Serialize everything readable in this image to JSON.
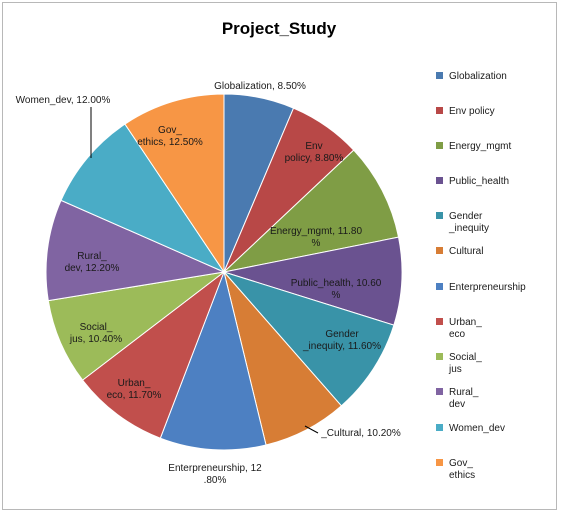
{
  "chart_data": {
    "type": "pie",
    "title": "Project_Study",
    "legend_position": "right",
    "slices": [
      {
        "legend": "Globalization",
        "label": [
          "Globalization, 8.50%"
        ],
        "value": 8.5,
        "color": "#4a7ab0"
      },
      {
        "legend": "Env policy",
        "label": [
          "Env",
          "policy, 8.80%"
        ],
        "value": 8.8,
        "color": "#b84847"
      },
      {
        "legend": "Energy_mgmt",
        "label": [
          "Energy_mgmt, 11.80",
          "%"
        ],
        "value": 11.8,
        "color": "#7f9d45"
      },
      {
        "legend": "Public_health",
        "label": [
          "Public_health, 10.60",
          "%"
        ],
        "value": 10.6,
        "color": "#6a5290"
      },
      {
        "legend": "Gender _inequity",
        "legend_lines": [
          "Gender",
          "_inequity"
        ],
        "label": [
          "Gender",
          "_inequity, 11.60%"
        ],
        "value": 11.6,
        "color": "#3993a8"
      },
      {
        "legend": "Cultural",
        "label": [
          "_Cultural, 10.20%"
        ],
        "value": 10.2,
        "color": "#d77d35"
      },
      {
        "legend": "Enterpreneurship",
        "label": [
          "Enterpreneurship, 12",
          ".80%"
        ],
        "value": 12.8,
        "color": "#4d80c2"
      },
      {
        "legend": "Urban_ eco",
        "legend_lines": [
          "Urban_",
          "eco"
        ],
        "label": [
          "Urban_",
          "eco, 11.70%"
        ],
        "value": 11.7,
        "color": "#c14f4c"
      },
      {
        "legend": "Social_ jus",
        "legend_lines": [
          "Social_",
          "jus"
        ],
        "label": [
          "Social_",
          "jus, 10.40%"
        ],
        "value": 10.4,
        "color": "#9cbb59"
      },
      {
        "legend": "Rural_ dev",
        "legend_lines": [
          "Rural_",
          "dev"
        ],
        "label": [
          "Rural_",
          "dev, 12.20%"
        ],
        "value": 12.2,
        "color": "#8064a2"
      },
      {
        "legend": "Women_dev",
        "label": [
          "Women_dev, 12.00%"
        ],
        "value": 12.0,
        "color": "#4aacc6"
      },
      {
        "legend": "Gov_ ethics",
        "legend_lines": [
          "Gov_",
          "ethics"
        ],
        "label": [
          "Gov_",
          "ethics, 12.50%"
        ],
        "value": 12.5,
        "color": "#f79645"
      }
    ]
  }
}
